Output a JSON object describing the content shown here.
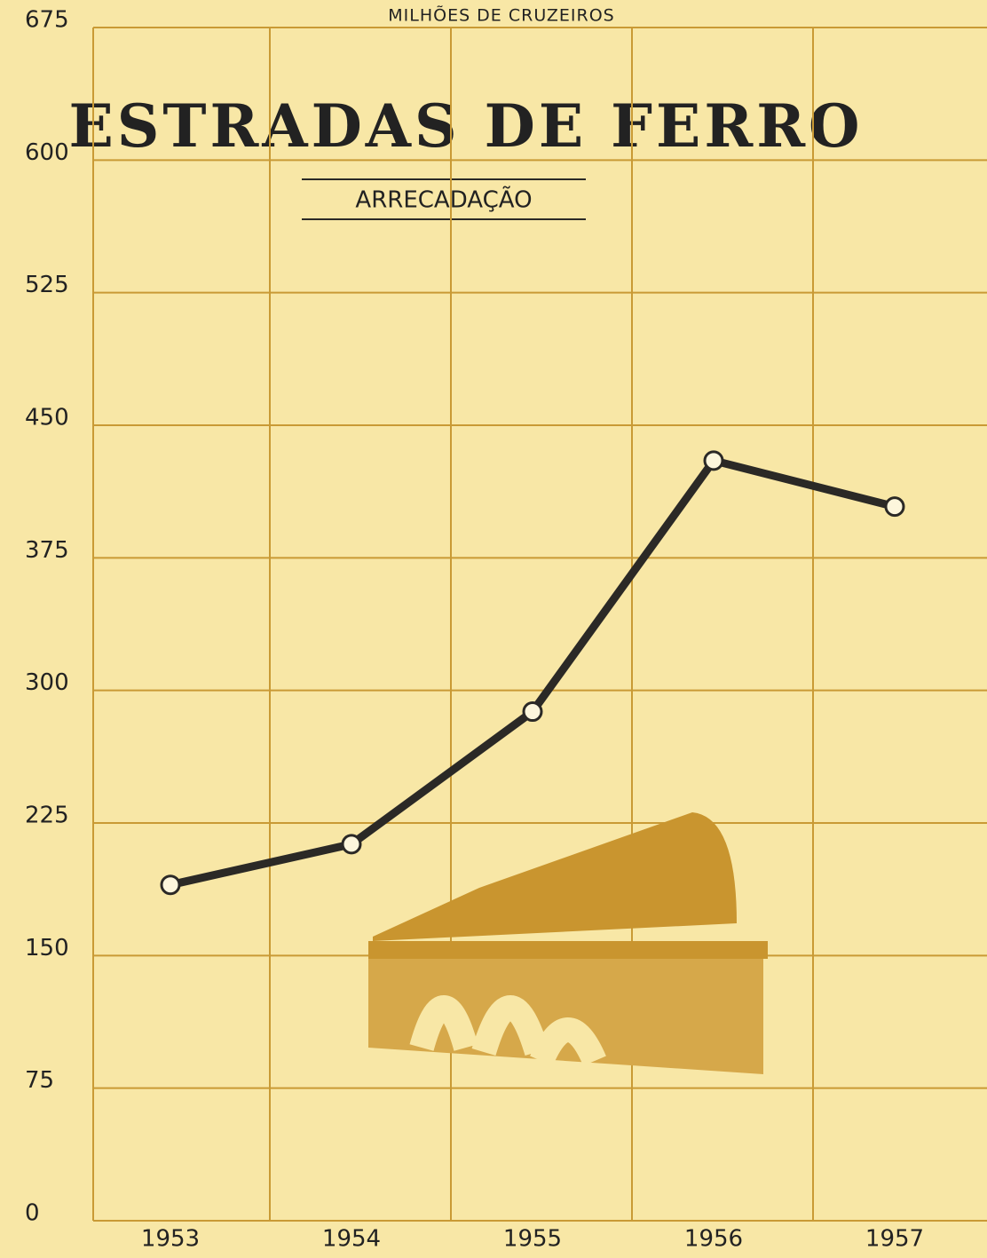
{
  "chart_data": {
    "type": "line",
    "title": "ESTRADAS DE FERRO",
    "subtitle": "ARRECADAÇÃO",
    "y_label": "MILHÕES DE CRUZEIROS",
    "categories": [
      "1953",
      "1954",
      "1955",
      "1956",
      "1957"
    ],
    "values": [
      190,
      213,
      288,
      430,
      404
    ],
    "color": "#2b2926",
    "ylim": [
      0,
      675
    ],
    "yticks": [
      0,
      75,
      150,
      225,
      300,
      375,
      450,
      525,
      600,
      675
    ],
    "grid": true
  }
}
